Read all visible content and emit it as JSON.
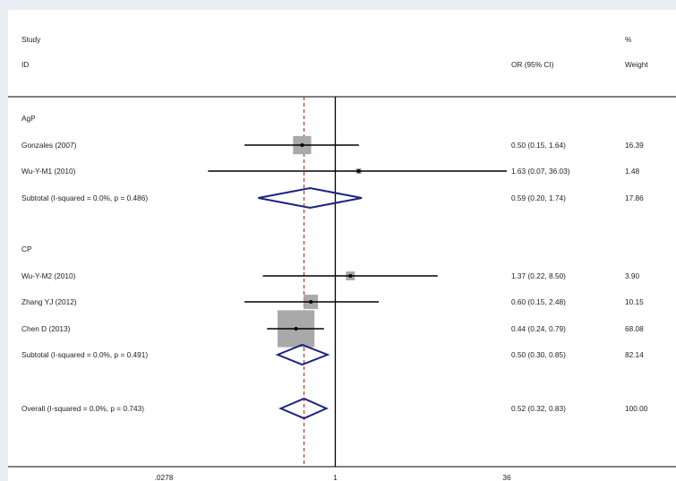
{
  "chart_data": {
    "type": "forest",
    "header": {
      "study_col_line1": "Study",
      "study_col_line2": "ID",
      "effect_col": "OR (95% CI)",
      "weight_col_line1": "%",
      "weight_col_line2": "Weight"
    },
    "x_axis": {
      "scale": "log",
      "range": [
        0.0278,
        36
      ],
      "ticks": [
        {
          "value": 0.0278,
          "label": ".0278"
        },
        {
          "value": 1,
          "label": "1"
        },
        {
          "value": 36,
          "label": "36"
        }
      ],
      "null_line": 1,
      "overall_estimate_line": 0.52
    },
    "groups": [
      {
        "name": "AgP",
        "studies": [
          {
            "label": "Gonzales (2007)",
            "or": 0.5,
            "lo": 0.15,
            "hi": 1.64,
            "ci_text": "0.50 (0.15, 1.64)",
            "weight": "16.39",
            "w": 16.39
          },
          {
            "label": "Wu-Y-M1 (2010)",
            "or": 1.63,
            "lo": 0.07,
            "hi": 36.03,
            "ci_text": "1.63 (0.07, 36.03)",
            "weight": "1.48",
            "w": 1.48
          }
        ],
        "subtotal": {
          "label": "Subtotal  (I-squared = 0.0%, p = 0.486)",
          "or": 0.59,
          "lo": 0.2,
          "hi": 1.74,
          "ci_text": "0.59 (0.20, 1.74)",
          "weight": "17.86"
        }
      },
      {
        "name": "CP",
        "studies": [
          {
            "label": "Wu-Y-M2 (2010)",
            "or": 1.37,
            "lo": 0.22,
            "hi": 8.5,
            "ci_text": "1.37 (0.22, 8.50)",
            "weight": "3.90",
            "w": 3.9
          },
          {
            "label": "Zhang YJ (2012)",
            "or": 0.6,
            "lo": 0.15,
            "hi": 2.48,
            "ci_text": "0.60 (0.15, 2.48)",
            "weight": "10.15",
            "w": 10.15
          },
          {
            "label": "Chen D (2013)",
            "or": 0.44,
            "lo": 0.24,
            "hi": 0.79,
            "ci_text": "0.44 (0.24, 0.79)",
            "weight": "68.08",
            "w": 68.08
          }
        ],
        "subtotal": {
          "label": "Subtotal  (I-squared = 0.0%, p = 0.491)",
          "or": 0.5,
          "lo": 0.3,
          "hi": 0.85,
          "ci_text": "0.50 (0.30, 0.85)",
          "weight": "82.14"
        }
      }
    ],
    "overall": {
      "label": "Overall  (I-squared = 0.0%, p = 0.743)",
      "or": 0.52,
      "lo": 0.32,
      "hi": 0.83,
      "ci_text": "0.52 (0.32, 0.83)",
      "weight": "100.00"
    },
    "colors": {
      "diamond": "#1a237e",
      "box": "#a9a9a9",
      "estimate_line": "#c0392b",
      "line": "#000000"
    }
  }
}
